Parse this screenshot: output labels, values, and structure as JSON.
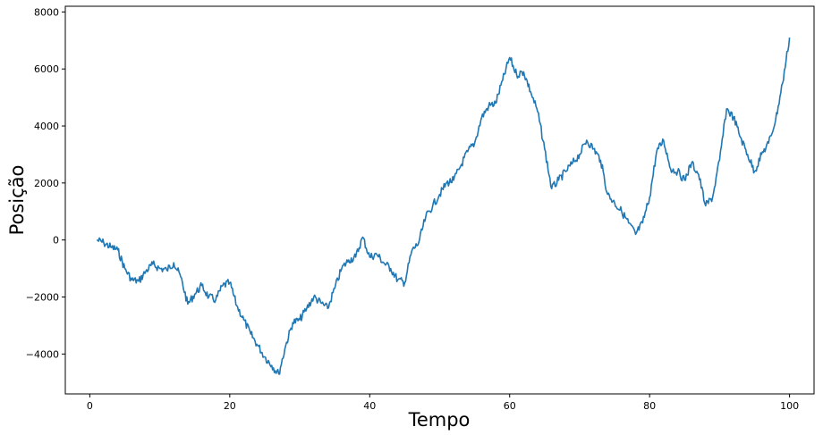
{
  "chart_data": {
    "type": "line",
    "title": "",
    "xlabel": "Tempo",
    "ylabel": "Posição",
    "xlim": [
      -3.5,
      103.5
    ],
    "ylim": [
      -5400,
      8200
    ],
    "xticks": [
      0,
      20,
      40,
      60,
      80,
      100
    ],
    "yticks": [
      -4000,
      -2000,
      0,
      2000,
      4000,
      6000,
      8000
    ],
    "xtick_labels": [
      "0",
      "20",
      "40",
      "60",
      "80",
      "100"
    ],
    "ytick_labels": [
      "−4000",
      "−2000",
      "0",
      "2000",
      "4000",
      "6000",
      "8000"
    ],
    "grid": false,
    "legend": "none",
    "series": [
      {
        "color": "#1f77b4",
        "x": [
          1,
          2,
          3,
          4,
          5,
          6,
          7,
          8,
          9,
          10,
          11,
          12,
          13,
          14,
          15,
          16,
          17,
          18,
          19,
          20,
          21,
          22,
          23,
          24,
          25,
          26,
          27,
          28,
          29,
          30,
          31,
          32,
          33,
          34,
          35,
          36,
          37,
          38,
          39,
          40,
          41,
          42,
          43,
          44,
          45,
          46,
          47,
          48,
          49,
          50,
          51,
          52,
          53,
          54,
          55,
          56,
          57,
          58,
          59,
          60,
          61,
          62,
          63,
          64,
          65,
          66,
          67,
          68,
          69,
          70,
          71,
          72,
          73,
          74,
          75,
          76,
          77,
          78,
          79,
          80,
          81,
          82,
          83,
          84,
          85,
          86,
          87,
          88,
          89,
          90,
          91,
          92,
          93,
          94,
          95,
          96,
          97,
          98,
          99,
          100
        ],
        "y": [
          0,
          -100,
          -250,
          -350,
          -1000,
          -1400,
          -1450,
          -1100,
          -850,
          -1000,
          -1050,
          -800,
          -1300,
          -2250,
          -1900,
          -1600,
          -2000,
          -2100,
          -1600,
          -1500,
          -2300,
          -2800,
          -3300,
          -3700,
          -4100,
          -4400,
          -4700,
          -3700,
          -2900,
          -2800,
          -2400,
          -2000,
          -2200,
          -2400,
          -1700,
          -1000,
          -700,
          -600,
          100,
          -600,
          -500,
          -800,
          -1000,
          -1400,
          -1500,
          -400,
          -100,
          800,
          1200,
          1600,
          2000,
          2100,
          2600,
          3100,
          3400,
          4300,
          4700,
          4800,
          5600,
          6400,
          5800,
          5900,
          5200,
          4500,
          3200,
          1800,
          2100,
          2400,
          2700,
          3000,
          3500,
          3200,
          2800,
          1600,
          1300,
          1000,
          600,
          200,
          600,
          1500,
          3100,
          3500,
          2500,
          2400,
          2100,
          2700,
          2300,
          1200,
          1500,
          2800,
          4600,
          4300,
          3600,
          3000,
          2400,
          3000,
          3400,
          4200,
          5500,
          7100
        ]
      }
    ]
  }
}
